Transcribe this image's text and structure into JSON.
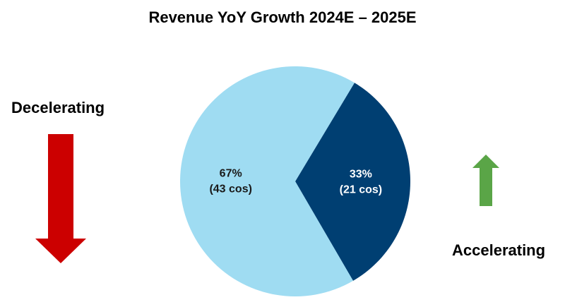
{
  "chart_data": {
    "type": "pie",
    "title": "Revenue YoY Growth 2024E – 2025E",
    "slices": [
      {
        "pct": 33,
        "pct_label": "33%",
        "count_label": "(21 cos)",
        "color": "#003f72",
        "text_color": "#ffffff"
      },
      {
        "pct": 67,
        "pct_label": "67%",
        "count_label": "(43 cos)",
        "color": "#9fdcf2",
        "text_color": "#1a1a1a"
      }
    ],
    "annotations": {
      "decelerating": {
        "text": "Decelerating",
        "arrow": "arrow-down",
        "color": "#cc0000"
      },
      "accelerating": {
        "text": "Accelerating",
        "arrow": "arrow-up",
        "color": "#5aa547"
      }
    }
  }
}
